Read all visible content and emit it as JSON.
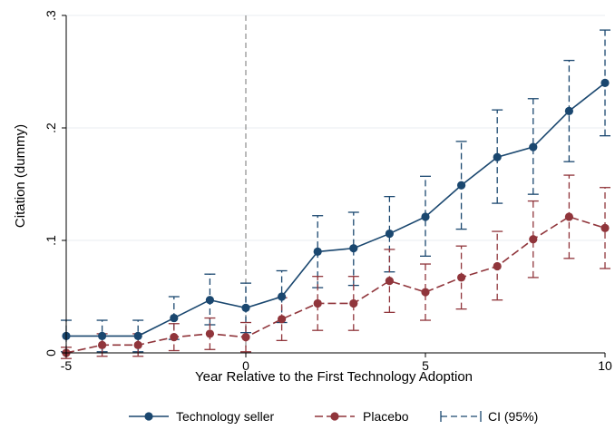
{
  "chart_data": {
    "type": "line",
    "title": "",
    "xlabel": "Year Relative to the First Technology Adoption",
    "ylabel": "Citation (dummy)",
    "x": [
      -5,
      -4,
      -3,
      -2,
      -1,
      0,
      1,
      2,
      3,
      4,
      5,
      6,
      7,
      8,
      9,
      10
    ],
    "xlim": [
      -5,
      10
    ],
    "ylim": [
      0,
      0.3
    ],
    "xticks": [
      -5,
      0,
      5,
      10
    ],
    "xtick_labels": [
      "-5",
      "0",
      "5",
      "10"
    ],
    "yticks": [
      0,
      0.1,
      0.2,
      0.3
    ],
    "ytick_labels": [
      "0",
      ".1",
      ".2",
      ".3"
    ],
    "grid": "horizontal",
    "reference_line_x": 0,
    "series": [
      {
        "name": "Technology seller",
        "color": "#1a476f",
        "values": [
          0.015,
          0.015,
          0.015,
          0.031,
          0.047,
          0.04,
          0.05,
          0.09,
          0.093,
          0.106,
          0.121,
          0.149,
          0.174,
          0.183,
          0.215,
          0.24
        ],
        "ci_low": [
          0.001,
          0.001,
          0.001,
          0.012,
          0.025,
          0.018,
          0.027,
          0.058,
          0.06,
          0.072,
          0.086,
          0.11,
          0.133,
          0.141,
          0.17,
          0.193
        ],
        "ci_high": [
          0.029,
          0.029,
          0.029,
          0.05,
          0.07,
          0.062,
          0.073,
          0.122,
          0.125,
          0.139,
          0.157,
          0.188,
          0.216,
          0.226,
          0.26,
          0.287
        ]
      },
      {
        "name": "Placebo",
        "color": "#90353b",
        "values": [
          0.0,
          0.007,
          0.007,
          0.014,
          0.017,
          0.014,
          0.03,
          0.044,
          0.044,
          0.064,
          0.054,
          0.067,
          0.077,
          0.101,
          0.121,
          0.111
        ],
        "ci_low": [
          -0.005,
          -0.003,
          -0.003,
          0.002,
          0.003,
          0.001,
          0.011,
          0.02,
          0.02,
          0.036,
          0.029,
          0.039,
          0.047,
          0.067,
          0.084,
          0.075
        ],
        "ci_high": [
          0.005,
          0.017,
          0.017,
          0.026,
          0.031,
          0.027,
          0.049,
          0.068,
          0.068,
          0.092,
          0.079,
          0.095,
          0.108,
          0.135,
          0.158,
          0.147
        ]
      }
    ],
    "legend": {
      "position": "bottom",
      "items": [
        "Technology seller",
        "Placebo",
        "CI (95%)"
      ],
      "ci_color": "#1a476f"
    }
  }
}
